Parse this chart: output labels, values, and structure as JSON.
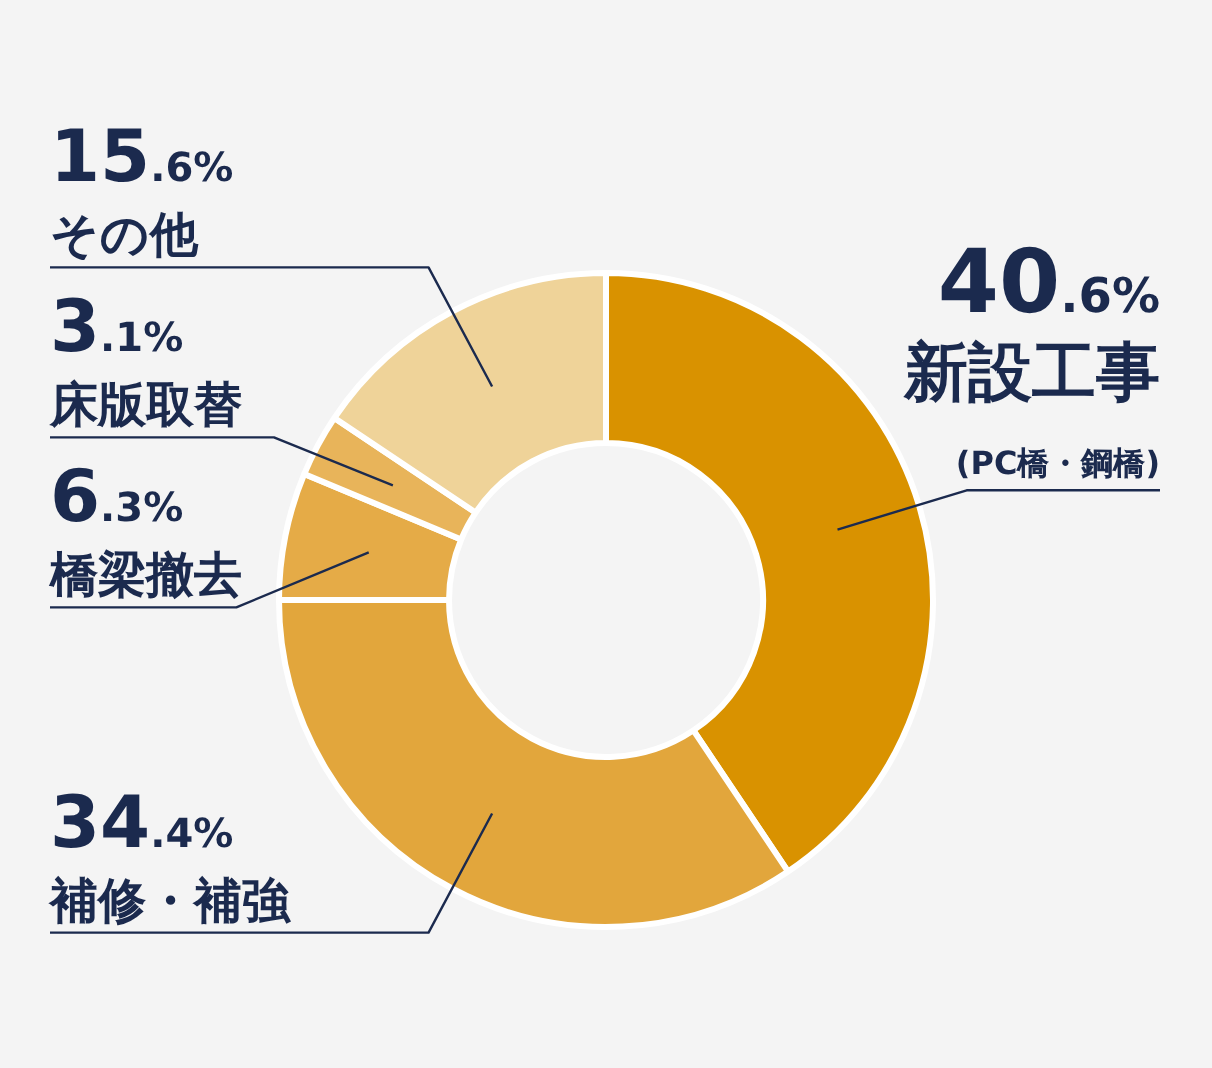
{
  "chart_data": {
    "type": "donut",
    "categories": [
      "新設工事",
      "補修・補強",
      "橋梁撤去",
      "床版取替",
      "その他"
    ],
    "values": [
      40.6,
      34.4,
      6.3,
      3.1,
      15.6
    ],
    "value_labels": [
      "40.6%",
      "34.4%",
      "6.3%",
      "3.1%",
      "15.6%"
    ],
    "colors": [
      "#d99200",
      "#e2a63c",
      "#e5ab47",
      "#e8b45a",
      "#efd399"
    ],
    "annotations": [
      {
        "text": "(PC橋・鋼橋)",
        "x": "新設工事"
      }
    ],
    "legend": false
  }
}
